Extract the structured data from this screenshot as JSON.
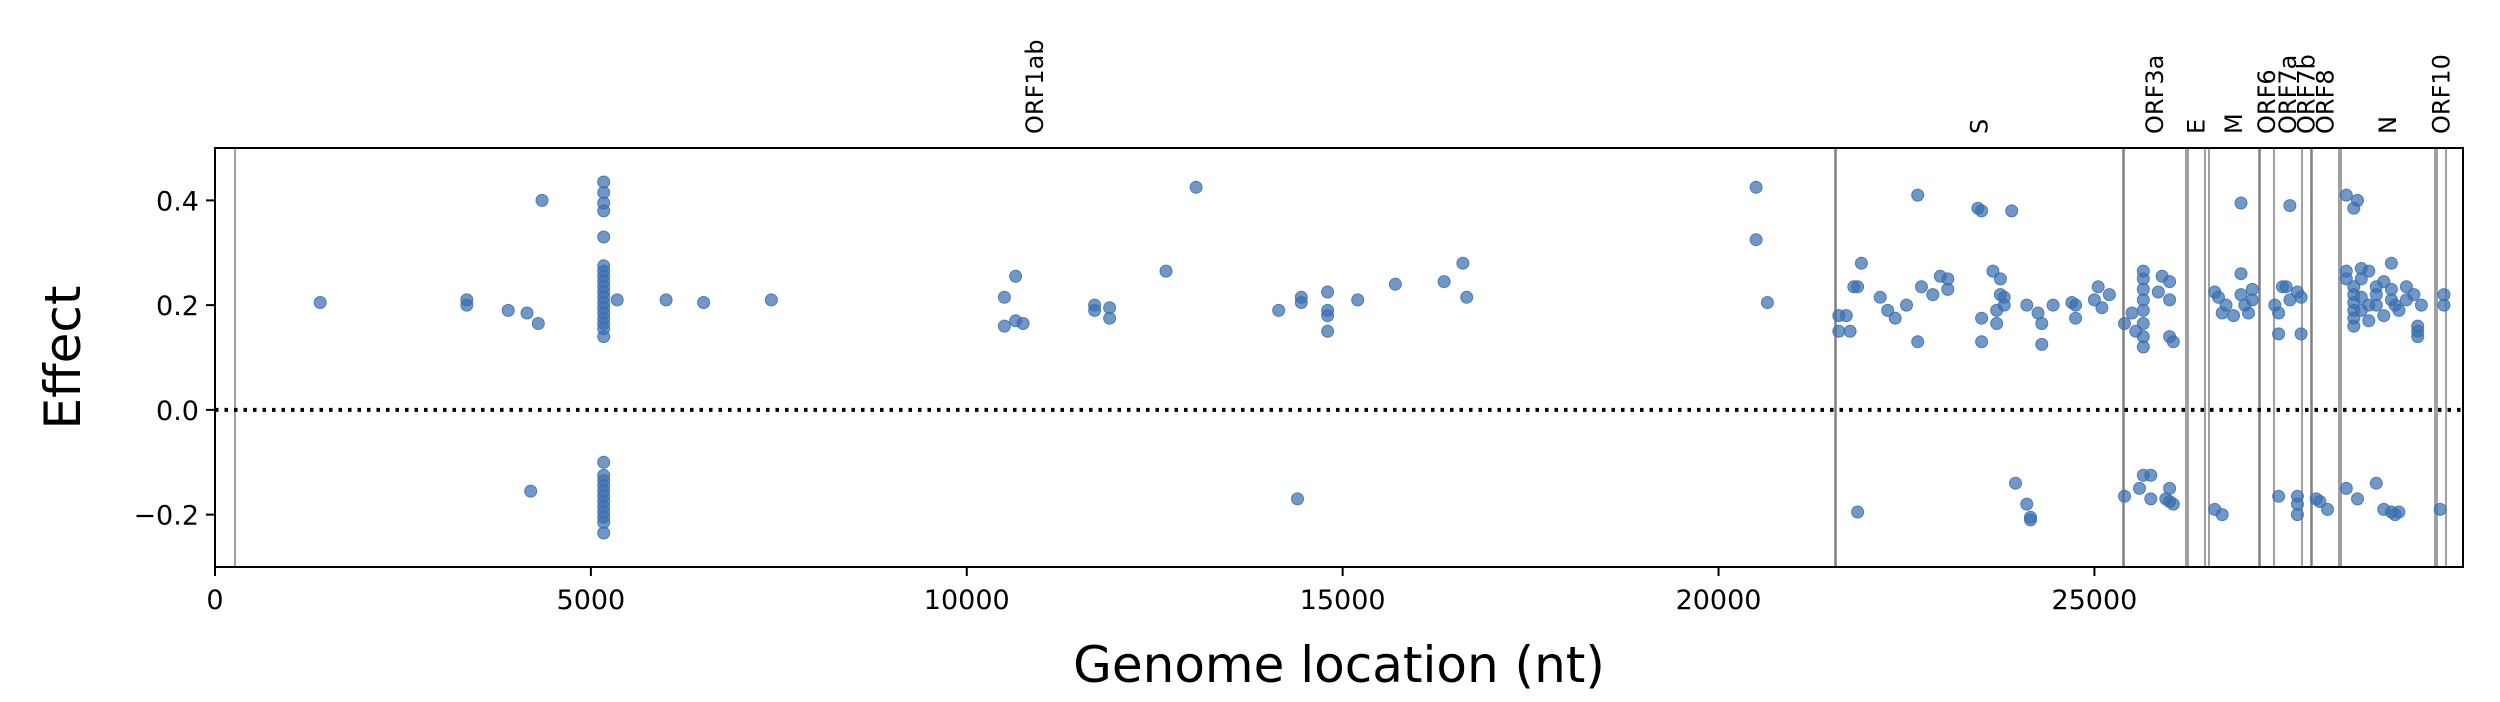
{
  "chart_data": {
    "type": "scatter",
    "xlabel": "Genome location (nt)",
    "ylabel": "Effect",
    "xlim": [
      0,
      29903
    ],
    "ylim": [
      -0.3,
      0.5
    ],
    "xticks": [
      0,
      5000,
      10000,
      15000,
      20000,
      25000
    ],
    "xtick_labels": [
      "0",
      "5000",
      "10000",
      "15000",
      "20000",
      "25000"
    ],
    "yticks": [
      -0.2,
      0.0,
      0.2,
      0.4
    ],
    "ytick_labels": [
      "−0.2",
      "0.0",
      "0.2",
      "0.4"
    ],
    "grid": false,
    "reference_line": {
      "y": 0.0,
      "style": "dotted"
    },
    "point_color": "#3a6fb0",
    "boundary_color": "#808080",
    "genes": [
      {
        "name": "ORF1ab",
        "start": 266,
        "end": 21555
      },
      {
        "name": "S",
        "start": 21563,
        "end": 25384
      },
      {
        "name": "ORF3a",
        "start": 25393,
        "end": 26220
      },
      {
        "name": "E",
        "start": 26245,
        "end": 26472
      },
      {
        "name": "M",
        "start": 26523,
        "end": 27191
      },
      {
        "name": "ORF6",
        "start": 27202,
        "end": 27387
      },
      {
        "name": "ORF7a",
        "start": 27394,
        "end": 27759
      },
      {
        "name": "ORF7b",
        "start": 27756,
        "end": 27887
      },
      {
        "name": "ORF8",
        "start": 27894,
        "end": 28259
      },
      {
        "name": "N",
        "start": 28274,
        "end": 29533
      },
      {
        "name": "ORF10",
        "start": 29558,
        "end": 29674
      }
    ],
    "points": [
      [
        1400,
        0.205
      ],
      [
        3350,
        0.21
      ],
      [
        3350,
        0.2
      ],
      [
        3900,
        0.19
      ],
      [
        4150,
        0.185
      ],
      [
        4300,
        0.165
      ],
      [
        4350,
        0.4
      ],
      [
        4200,
        -0.155
      ],
      [
        5170,
        0.435
      ],
      [
        5170,
        0.415
      ],
      [
        5170,
        0.395
      ],
      [
        5170,
        0.38
      ],
      [
        5170,
        0.33
      ],
      [
        5170,
        0.275
      ],
      [
        5170,
        0.265
      ],
      [
        5170,
        0.255
      ],
      [
        5170,
        0.245
      ],
      [
        5170,
        0.235
      ],
      [
        5170,
        0.225
      ],
      [
        5170,
        0.215
      ],
      [
        5170,
        0.205
      ],
      [
        5170,
        0.195
      ],
      [
        5170,
        0.185
      ],
      [
        5170,
        0.175
      ],
      [
        5170,
        0.165
      ],
      [
        5170,
        0.155
      ],
      [
        5170,
        0.14
      ],
      [
        5170,
        -0.1
      ],
      [
        5170,
        -0.125
      ],
      [
        5170,
        -0.135
      ],
      [
        5170,
        -0.145
      ],
      [
        5170,
        -0.155
      ],
      [
        5170,
        -0.165
      ],
      [
        5170,
        -0.175
      ],
      [
        5170,
        -0.185
      ],
      [
        5170,
        -0.195
      ],
      [
        5170,
        -0.205
      ],
      [
        5170,
        -0.215
      ],
      [
        5170,
        -0.235
      ],
      [
        5350,
        0.21
      ],
      [
        6000,
        0.21
      ],
      [
        6500,
        0.205
      ],
      [
        7400,
        0.21
      ],
      [
        10500,
        0.215
      ],
      [
        10500,
        0.16
      ],
      [
        10650,
        0.255
      ],
      [
        10650,
        0.17
      ],
      [
        10750,
        0.165
      ],
      [
        11700,
        0.2
      ],
      [
        11700,
        0.19
      ],
      [
        11900,
        0.195
      ],
      [
        11900,
        0.175
      ],
      [
        12650,
        0.265
      ],
      [
        13050,
        0.425
      ],
      [
        14150,
        0.19
      ],
      [
        14400,
        -0.17
      ],
      [
        14450,
        0.215
      ],
      [
        14450,
        0.205
      ],
      [
        14800,
        0.225
      ],
      [
        14800,
        0.19
      ],
      [
        14800,
        0.18
      ],
      [
        14800,
        0.15
      ],
      [
        15200,
        0.21
      ],
      [
        15700,
        0.24
      ],
      [
        16350,
        0.245
      ],
      [
        16600,
        0.28
      ],
      [
        16650,
        0.215
      ],
      [
        20500,
        0.425
      ],
      [
        20500,
        0.325
      ],
      [
        20650,
        0.205
      ],
      [
        21600,
        0.18
      ],
      [
        21600,
        0.15
      ],
      [
        21700,
        0.18
      ],
      [
        21750,
        0.15
      ],
      [
        21800,
        0.235
      ],
      [
        21850,
        0.235
      ],
      [
        21900,
        0.28
      ],
      [
        21850,
        -0.195
      ],
      [
        22150,
        0.215
      ],
      [
        22250,
        0.19
      ],
      [
        22350,
        0.175
      ],
      [
        22500,
        0.2
      ],
      [
        22650,
        0.41
      ],
      [
        22650,
        0.13
      ],
      [
        22700,
        0.235
      ],
      [
        22850,
        0.22
      ],
      [
        22950,
        0.255
      ],
      [
        23050,
        0.25
      ],
      [
        23050,
        0.23
      ],
      [
        23450,
        0.385
      ],
      [
        23500,
        0.38
      ],
      [
        23500,
        0.175
      ],
      [
        23500,
        0.13
      ],
      [
        23650,
        0.265
      ],
      [
        23700,
        0.19
      ],
      [
        23700,
        0.165
      ],
      [
        23750,
        0.22
      ],
      [
        23800,
        0.215
      ],
      [
        23800,
        0.2
      ],
      [
        23750,
        0.25
      ],
      [
        23900,
        0.38
      ],
      [
        23950,
        -0.14
      ],
      [
        24100,
        0.2
      ],
      [
        24100,
        -0.18
      ],
      [
        24150,
        -0.205
      ],
      [
        24150,
        -0.21
      ],
      [
        24250,
        0.185
      ],
      [
        24300,
        0.165
      ],
      [
        24300,
        0.125
      ],
      [
        24450,
        0.2
      ],
      [
        24700,
        0.205
      ],
      [
        24750,
        0.175
      ],
      [
        24750,
        0.2
      ],
      [
        25000,
        0.21
      ],
      [
        25050,
        0.235
      ],
      [
        25100,
        0.195
      ],
      [
        25200,
        0.22
      ],
      [
        25400,
        0.165
      ],
      [
        25500,
        0.185
      ],
      [
        25400,
        -0.165
      ],
      [
        25550,
        0.15
      ],
      [
        25650,
        0.265
      ],
      [
        25650,
        0.25
      ],
      [
        25650,
        0.23
      ],
      [
        25650,
        0.21
      ],
      [
        25650,
        0.19
      ],
      [
        25650,
        0.165
      ],
      [
        25650,
        0.14
      ],
      [
        25650,
        0.12
      ],
      [
        25600,
        -0.15
      ],
      [
        25650,
        -0.125
      ],
      [
        25750,
        -0.125
      ],
      [
        25750,
        -0.17
      ],
      [
        25850,
        0.225
      ],
      [
        25900,
        0.255
      ],
      [
        26000,
        0.245
      ],
      [
        26000,
        0.21
      ],
      [
        26000,
        0.14
      ],
      [
        26050,
        0.13
      ],
      [
        25950,
        -0.17
      ],
      [
        26000,
        -0.15
      ],
      [
        26000,
        -0.175
      ],
      [
        26050,
        -0.18
      ],
      [
        26600,
        0.225
      ],
      [
        26650,
        0.215
      ],
      [
        26700,
        0.185
      ],
      [
        26750,
        0.2
      ],
      [
        26600,
        -0.19
      ],
      [
        26700,
        -0.2
      ],
      [
        26850,
        0.18
      ],
      [
        26950,
        0.395
      ],
      [
        26950,
        0.26
      ],
      [
        26950,
        0.22
      ],
      [
        27000,
        0.2
      ],
      [
        27050,
        0.185
      ],
      [
        27100,
        0.23
      ],
      [
        27100,
        0.21
      ],
      [
        27400,
        0.2
      ],
      [
        27450,
        0.185
      ],
      [
        27450,
        0.145
      ],
      [
        27450,
        -0.165
      ],
      [
        27500,
        0.235
      ],
      [
        27600,
        0.39
      ],
      [
        27550,
        0.235
      ],
      [
        27600,
        0.21
      ],
      [
        27700,
        0.225
      ],
      [
        27750,
        0.215
      ],
      [
        27750,
        0.145
      ],
      [
        27700,
        -0.165
      ],
      [
        27700,
        -0.18
      ],
      [
        27700,
        -0.2
      ],
      [
        27950,
        -0.17
      ],
      [
        28000,
        -0.175
      ],
      [
        28100,
        -0.19
      ],
      [
        28350,
        0.41
      ],
      [
        28500,
        0.4
      ],
      [
        28450,
        0.385
      ],
      [
        28350,
        0.265
      ],
      [
        28350,
        0.25
      ],
      [
        28450,
        0.235
      ],
      [
        28450,
        0.22
      ],
      [
        28450,
        0.205
      ],
      [
        28450,
        0.19
      ],
      [
        28450,
        0.175
      ],
      [
        28450,
        0.16
      ],
      [
        28550,
        0.27
      ],
      [
        28550,
        0.25
      ],
      [
        28550,
        0.215
      ],
      [
        28550,
        0.19
      ],
      [
        28650,
        0.265
      ],
      [
        28650,
        0.2
      ],
      [
        28650,
        0.17
      ],
      [
        28750,
        0.235
      ],
      [
        28750,
        0.22
      ],
      [
        28750,
        0.2
      ],
      [
        28850,
        0.245
      ],
      [
        28850,
        0.18
      ],
      [
        28950,
        0.28
      ],
      [
        28950,
        0.23
      ],
      [
        28950,
        0.21
      ],
      [
        29000,
        0.2
      ],
      [
        29050,
        0.19
      ],
      [
        29150,
        0.235
      ],
      [
        29150,
        0.21
      ],
      [
        29250,
        0.22
      ],
      [
        29300,
        0.16
      ],
      [
        29300,
        0.15
      ],
      [
        29300,
        0.14
      ],
      [
        29350,
        0.2
      ],
      [
        28350,
        -0.15
      ],
      [
        28500,
        -0.17
      ],
      [
        28750,
        -0.14
      ],
      [
        28850,
        -0.19
      ],
      [
        28950,
        -0.195
      ],
      [
        29000,
        -0.2
      ],
      [
        29050,
        -0.195
      ],
      [
        29650,
        0.22
      ],
      [
        29650,
        0.2
      ],
      [
        29600,
        -0.19
      ]
    ]
  }
}
